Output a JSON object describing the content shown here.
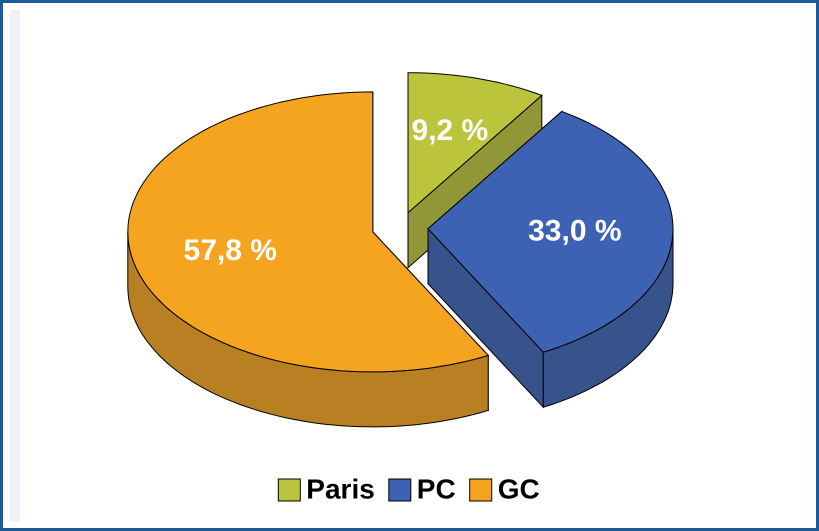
{
  "chart_data": {
    "type": "pie",
    "categories": [
      "Paris",
      "PC",
      "GC"
    ],
    "values": [
      9.2,
      33.0,
      57.8
    ],
    "value_labels": [
      "9,2 %",
      "33,0 %",
      "57,8 %"
    ],
    "colors": [
      "#bcc43c",
      "#3d62b3",
      "#f5a41f"
    ],
    "legend": "bottom"
  }
}
